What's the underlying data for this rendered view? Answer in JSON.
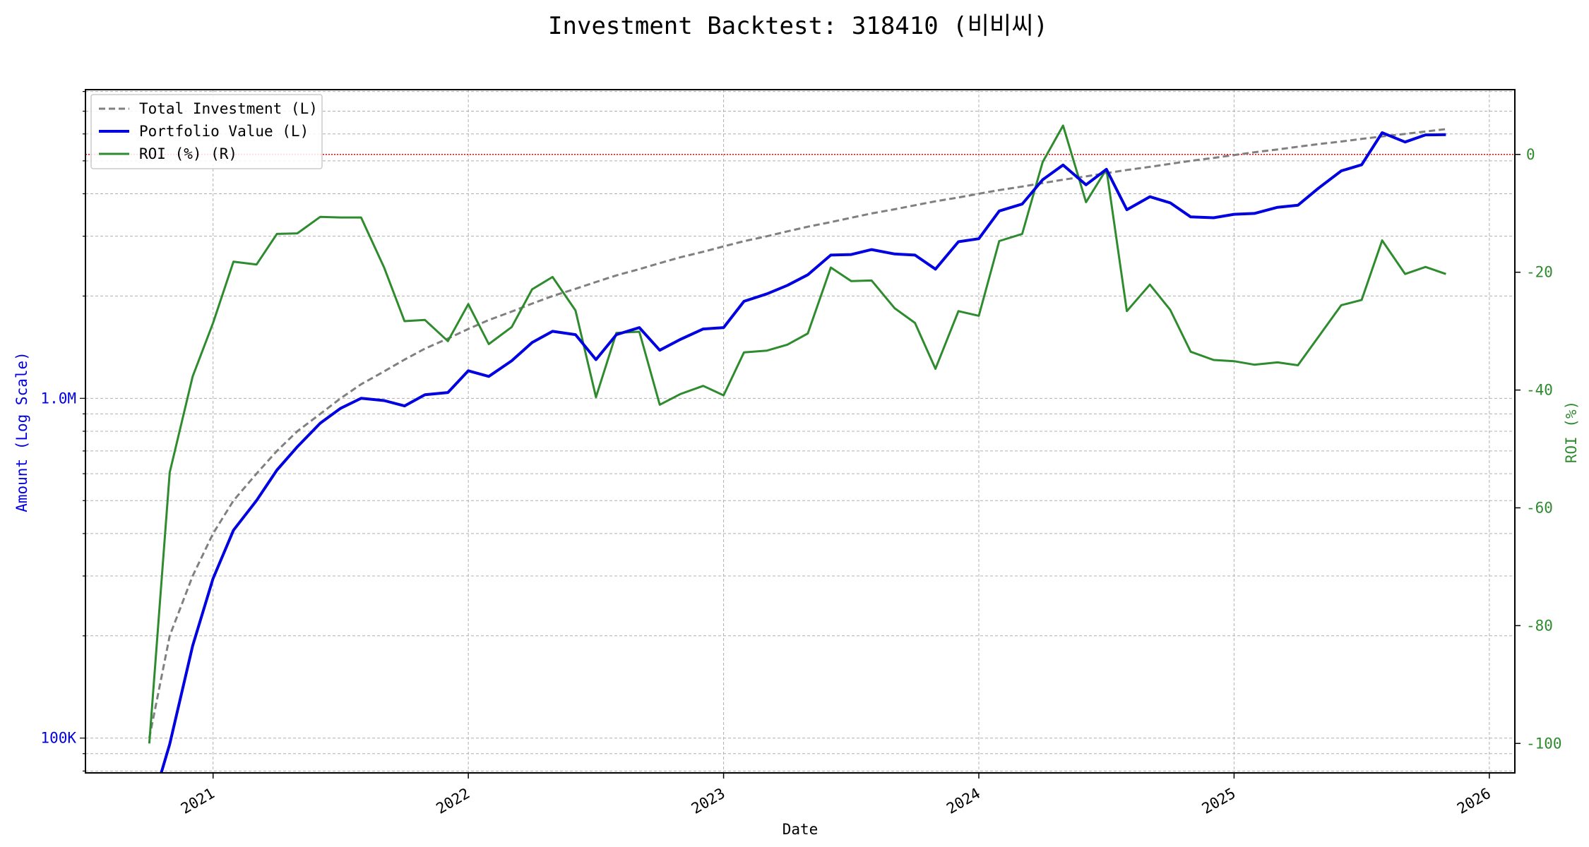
{
  "chart_data": {
    "type": "line",
    "title": "Investment Backtest: 318410 (비비씨)",
    "xlabel": "Date",
    "ylabel_left": "Amount (Log Scale)",
    "ylabel_right": "ROI (%)",
    "y_left_scale": "log",
    "x_range": [
      2020.5,
      2026.1
    ],
    "y_left_range": [
      79000,
      8100000
    ],
    "y_right_range": [
      -105,
      11
    ],
    "x_ticks": [
      {
        "value": 2021,
        "label": "2021"
      },
      {
        "value": 2022,
        "label": "2022"
      },
      {
        "value": 2023,
        "label": "2023"
      },
      {
        "value": 2024,
        "label": "2024"
      },
      {
        "value": 2025,
        "label": "2025"
      },
      {
        "value": 2026,
        "label": "2026"
      }
    ],
    "y_left_ticks": [
      {
        "value": 100000,
        "label": "100K"
      },
      {
        "value": 1000000,
        "label": "1.0M"
      }
    ],
    "y_right_ticks": [
      {
        "value": 0,
        "label": "0"
      },
      {
        "value": -20,
        "label": "-20"
      },
      {
        "value": -40,
        "label": "-40"
      },
      {
        "value": -60,
        "label": "-60"
      },
      {
        "value": -80,
        "label": "-80"
      },
      {
        "value": -100,
        "label": "-100"
      }
    ],
    "grid": true,
    "legend_position": "top-left",
    "reference_line": {
      "axis": "right",
      "value": 0,
      "color": "#ff0000",
      "style": "dotted"
    },
    "x": [
      2020.75,
      2020.83,
      2020.92,
      2021.0,
      2021.08,
      2021.17,
      2021.25,
      2021.33,
      2021.42,
      2021.5,
      2021.58,
      2021.67,
      2021.75,
      2021.83,
      2021.92,
      2022.0,
      2022.08,
      2022.17,
      2022.25,
      2022.33,
      2022.42,
      2022.5,
      2022.58,
      2022.67,
      2022.75,
      2022.83,
      2022.92,
      2023.0,
      2023.08,
      2023.17,
      2023.25,
      2023.33,
      2023.42,
      2023.5,
      2023.58,
      2023.67,
      2023.75,
      2023.83,
      2023.92,
      2024.0,
      2024.08,
      2024.17,
      2024.25,
      2024.33,
      2024.42,
      2024.5,
      2024.58,
      2024.67,
      2024.75,
      2024.83,
      2024.92,
      2025.0,
      2025.08,
      2025.17,
      2025.25,
      2025.33,
      2025.42,
      2025.5,
      2025.58,
      2025.67,
      2025.75,
      2025.83
    ],
    "series": [
      {
        "name": "Total Investment (L)",
        "axis": "left",
        "color": "#808080",
        "style": "dashed",
        "values": [
          100000,
          200000,
          300000,
          400000,
          500000,
          600000,
          700000,
          800000,
          900000,
          1000000,
          1100000,
          1200000,
          1300000,
          1400000,
          1500000,
          1600000,
          1700000,
          1800000,
          1900000,
          2000000,
          2100000,
          2200000,
          2300000,
          2400000,
          2500000,
          2600000,
          2700000,
          2800000,
          2900000,
          3000000,
          3100000,
          3200000,
          3300000,
          3400000,
          3500000,
          3600000,
          3700000,
          3800000,
          3900000,
          4000000,
          4100000,
          4200000,
          4300000,
          4400000,
          4500000,
          4600000,
          4700000,
          4800000,
          4900000,
          5000000,
          5100000,
          5200000,
          5300000,
          5400000,
          5500000,
          5600000,
          5700000,
          5800000,
          5900000,
          6000000,
          6100000,
          6200000
        ]
      },
      {
        "name": "Portfolio Value (L)",
        "axis": "left",
        "color": "#0000e0",
        "style": "solid",
        "values": [
          60000,
          96000,
          187000,
          295000,
          409000,
          500000,
          615000,
          720000,
          845000,
          935000,
          1000000,
          985000,
          950000,
          1025000,
          1040000,
          1205000,
          1160000,
          1290000,
          1460000,
          1575000,
          1540000,
          1300000,
          1540000,
          1615000,
          1385000,
          1490000,
          1600000,
          1615000,
          1930000,
          2030000,
          2150000,
          2310000,
          2640000,
          2650000,
          2740000,
          2660000,
          2640000,
          2400000,
          2890000,
          2950000,
          3560000,
          3730000,
          4400000,
          4860000,
          4250000,
          4720000,
          3590000,
          3920000,
          3760000,
          3420000,
          3400000,
          3480000,
          3500000,
          3650000,
          3700000,
          4150000,
          4670000,
          4870000,
          6050000,
          5680000,
          5960000,
          5970000
        ]
      },
      {
        "name": "ROI (%) (R)",
        "axis": "right",
        "color": "#2e8b2e",
        "style": "solid",
        "values": [
          -100,
          -54,
          -37.7,
          -28.6,
          -18.2,
          -18.7,
          -13.5,
          -13.4,
          -10.6,
          -10.7,
          -10.7,
          -19.2,
          -28.3,
          -28.1,
          -31.7,
          -25.4,
          -32.2,
          -29.3,
          -22.9,
          -20.8,
          -26.5,
          -41.2,
          -30.3,
          -30.1,
          -42.5,
          -40.7,
          -39.3,
          -40.9,
          -33.6,
          -33.3,
          -32.3,
          -30.4,
          -19.2,
          -21.5,
          -21.4,
          -26.1,
          -28.6,
          -36.4,
          -26.6,
          -27.4,
          -14.7,
          -13.5,
          -1.3,
          4.9,
          -8.1,
          -2.5,
          -26.6,
          -22.1,
          -26.4,
          -33.5,
          -34.9,
          -35.1,
          -35.7,
          -35.3,
          -35.8,
          -31,
          -25.6,
          -24.7,
          -14.6,
          -20.3,
          -19.1,
          -20.3
        ]
      }
    ]
  }
}
